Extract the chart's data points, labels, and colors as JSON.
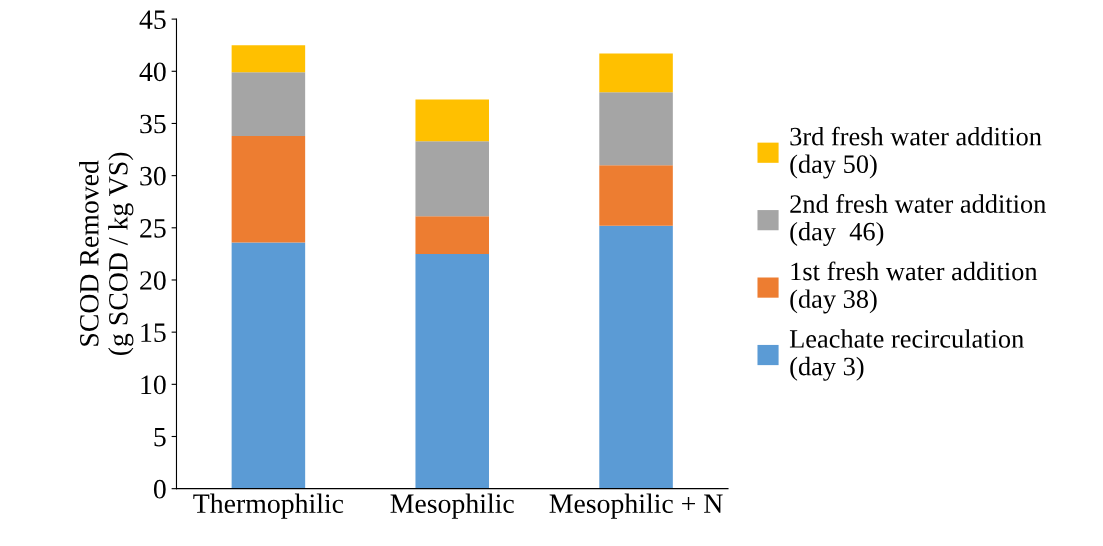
{
  "chart_data": {
    "type": "bar",
    "stacked": true,
    "ylabel": "SCOD Removed\n(g SCOD / kg VS)",
    "categories": [
      "Thermophilic",
      "Mesophilic",
      "Mesophilic + N"
    ],
    "series": [
      {
        "name": "Leachate recirculation\n(day 3)",
        "color": "#5b9bd5",
        "values": [
          23.6,
          22.5,
          25.2
        ]
      },
      {
        "name": "1st fresh water addition\n(day 38)",
        "color": "#ed7d31",
        "values": [
          10.2,
          3.6,
          5.8
        ]
      },
      {
        "name": "2nd fresh water addition\n(day  46)",
        "color": "#a5a5a5",
        "values": [
          6.1,
          7.2,
          7.0
        ]
      },
      {
        "name": "3rd fresh water addition\n(day 50)",
        "color": "#ffc000",
        "values": [
          2.6,
          4.0,
          3.7
        ]
      }
    ],
    "ylim": [
      0,
      45
    ],
    "yticks": [
      0,
      5,
      10,
      15,
      20,
      25,
      30,
      35,
      40,
      45
    ],
    "grid": false,
    "legend": "right"
  }
}
